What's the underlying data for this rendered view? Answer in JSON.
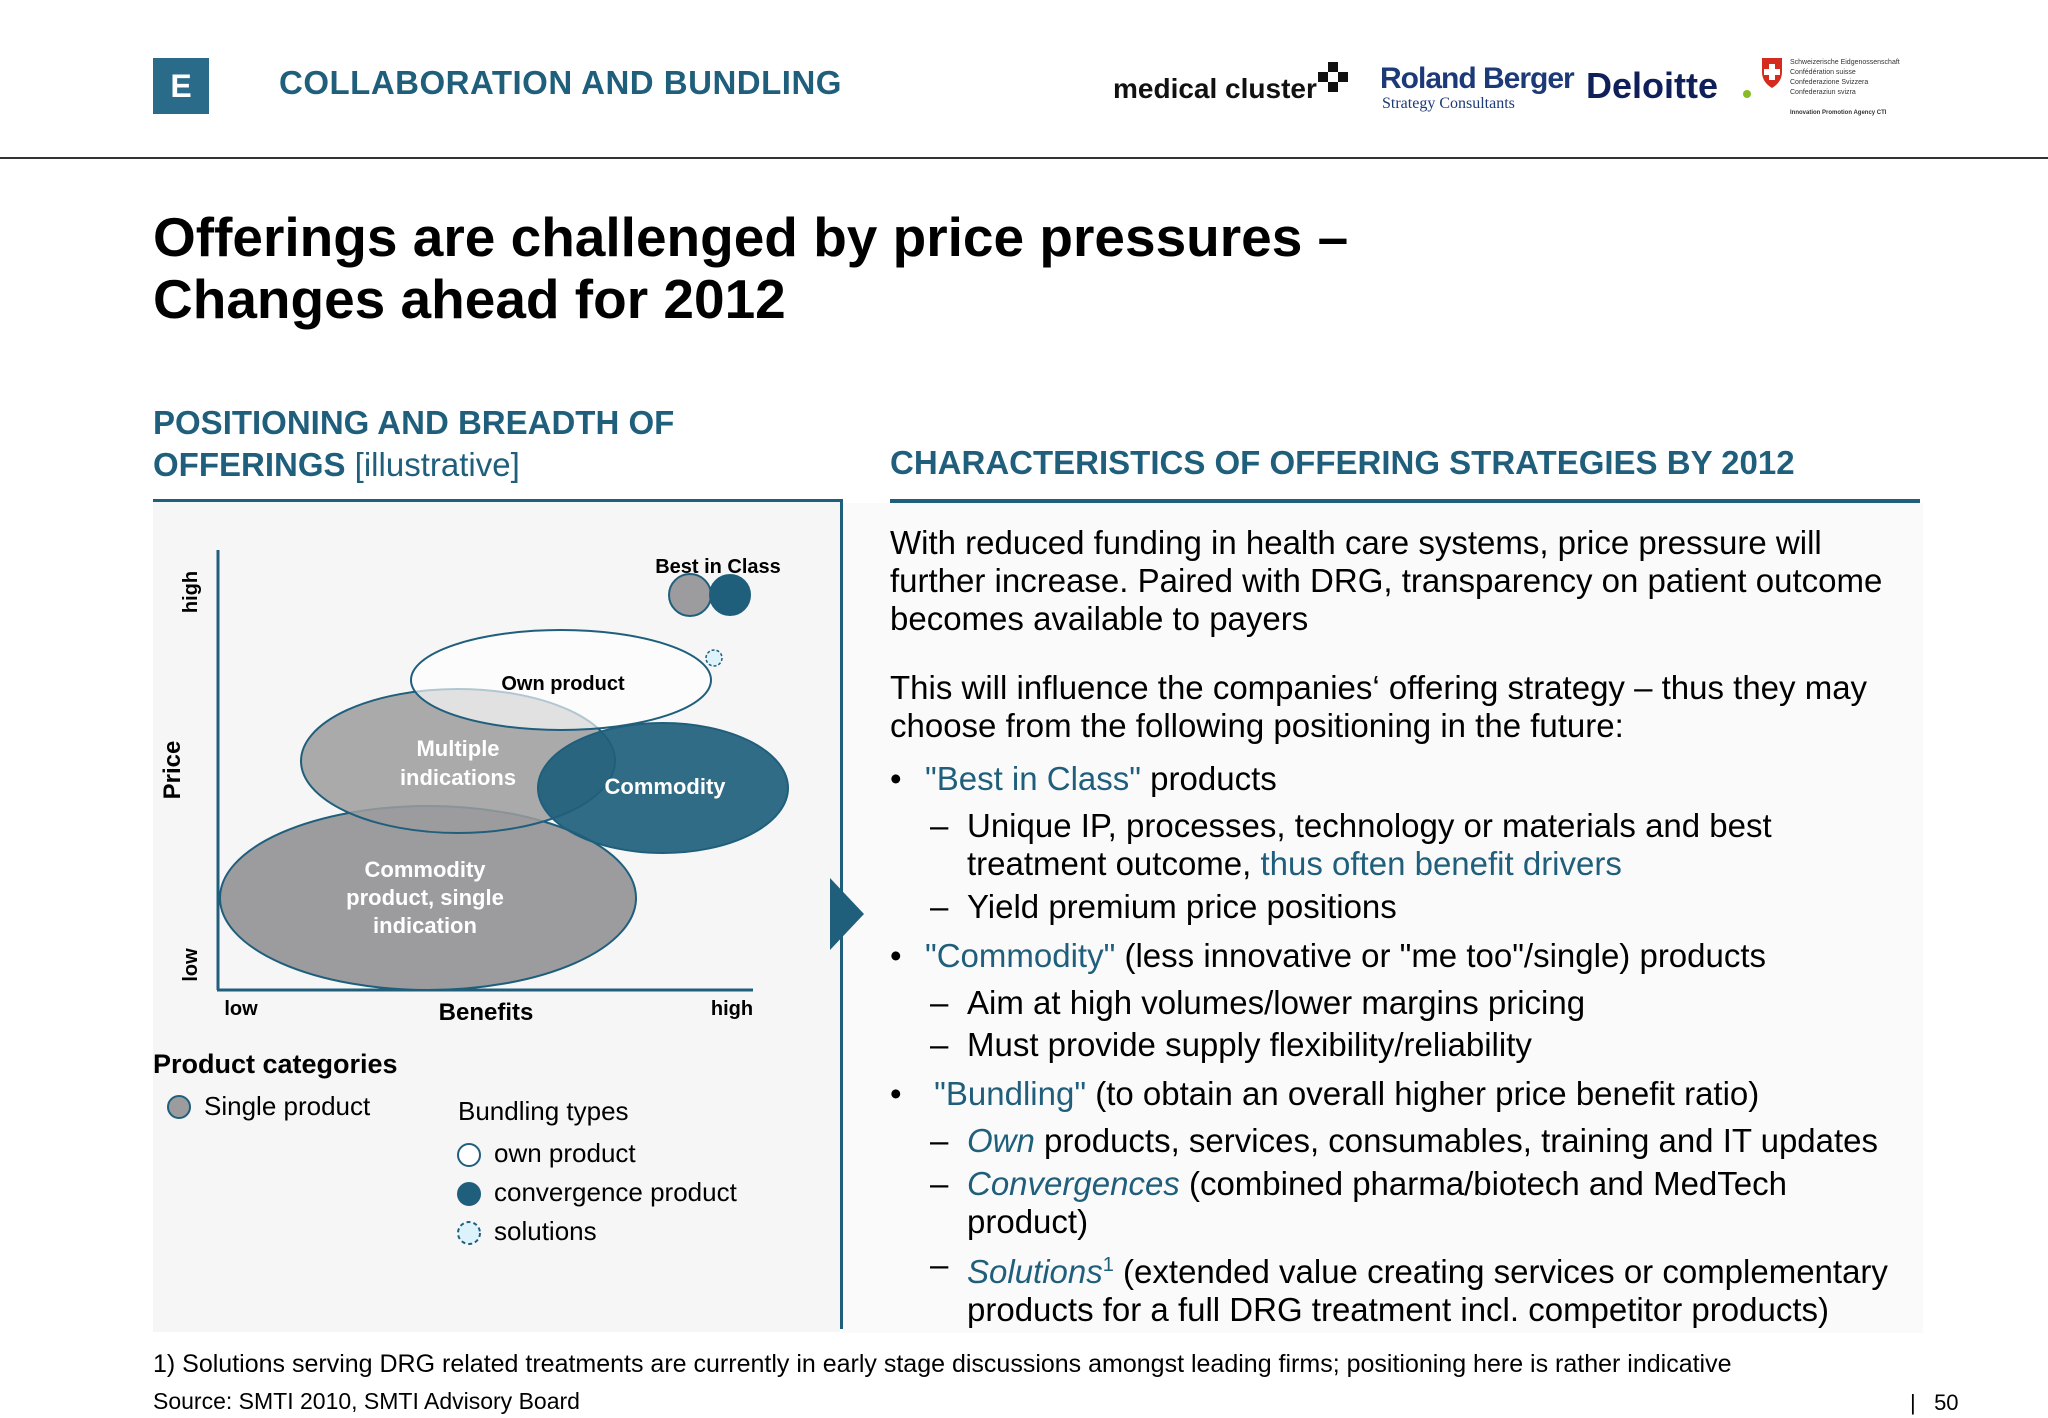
{
  "header": {
    "section_letter": "E",
    "section_title": "COLLABORATION AND BUNDLING",
    "logos": {
      "medical_cluster": "medical cluster",
      "roland_berger_1": "Roland Berger",
      "roland_berger_2": "Strategy Consultants",
      "deloitte": "Deloitte",
      "swiss_1": "Schweizerische Eidgenossenschaft",
      "swiss_2": "Confédération suisse",
      "swiss_3": "Confederazione Svizzera",
      "swiss_4": "Confederaziun svizra",
      "swiss_5": "Innovation Promotion Agency CTI"
    }
  },
  "title": {
    "line1": "Offerings are challenged by price pressures –",
    "line2": "Changes ahead for 2012"
  },
  "left": {
    "heading_line1": "POSITIONING AND BREADTH OF",
    "heading_line2_bold": "OFFERINGS",
    "heading_line2_normal": " [illustrative]",
    "diagram": {
      "y_axis_label": "Price",
      "y_low": "low",
      "y_high": "high",
      "x_axis_label": "Benefits",
      "x_low": "low",
      "x_high": "high",
      "best_in_class": "Best in Class",
      "own_product": "Own product",
      "multiple_1": "Multiple",
      "multiple_2": "indications",
      "commodity": "Commodity",
      "commodity_single_1": "Commodity",
      "commodity_single_2": "product, single",
      "commodity_single_3": "indication"
    },
    "legend": {
      "product_title": "Product categories",
      "single_product": "Single product",
      "bundling_title": "Bundling types",
      "own_product": "own product",
      "convergence_product": "convergence product",
      "solutions": "solutions"
    }
  },
  "right": {
    "heading": "CHARACTERISTICS OF OFFERING STRATEGIES BY 2012",
    "para1_l1": "With reduced funding in health care systems, price pressure will",
    "para1_l2": "further increase. Paired with DRG, transparency on patient outcome",
    "para1_l3": "becomes available to payers",
    "para2_l1": "This will influence the companies‘ offering strategy – thus they may",
    "para2_l2": "choose from the following positioning in the future:",
    "b1_hl": "\"Best in Class\"",
    "b1_rest": " products",
    "b1_s1_l1": "Unique IP, processes, technology or materials and best",
    "b1_s1_l2a": "treatment outcome, ",
    "b1_s1_l2b": "thus often benefit drivers",
    "b1_s2": "Yield premium price positions",
    "b2_hl": "\"Commodity\"",
    "b2_rest": " (less innovative or \"me too\"/single) products",
    "b2_s1": "Aim at high volumes/lower margins pricing",
    "b2_s2": "Must provide supply flexibility/reliability",
    "b3_hl": " \"Bundling\"",
    "b3_rest": " (to obtain an overall higher price benefit ratio)",
    "b3_s1_it": "Own",
    "b3_s1_rest": " products, services, consumables, training and IT updates",
    "b3_s2_it": "Convergences",
    "b3_s2_rest": " (combined pharma/biotech and MedTech",
    "b3_s2_l2": "product)",
    "b3_s3_it": "Solutions",
    "b3_s3_sup": "1",
    "b3_s3_rest": " (extended value creating services or complementary",
    "b3_s3_l2": "products for a full DRG treatment incl. competitor products)",
    "bullet_char": "•",
    "dash_char": "–"
  },
  "footer": {
    "footnote": "1) Solutions serving DRG related treatments are currently in early stage discussions amongst leading firms; positioning here is rather indicative",
    "source": "Source:  SMTI 2010, SMTI Advisory Board",
    "page": "50",
    "separator": "|"
  },
  "colors": {
    "accent": "#1f5f7c",
    "grey_bubble": "#9c9c9e",
    "dark_bubble": "#1f5f7c"
  }
}
